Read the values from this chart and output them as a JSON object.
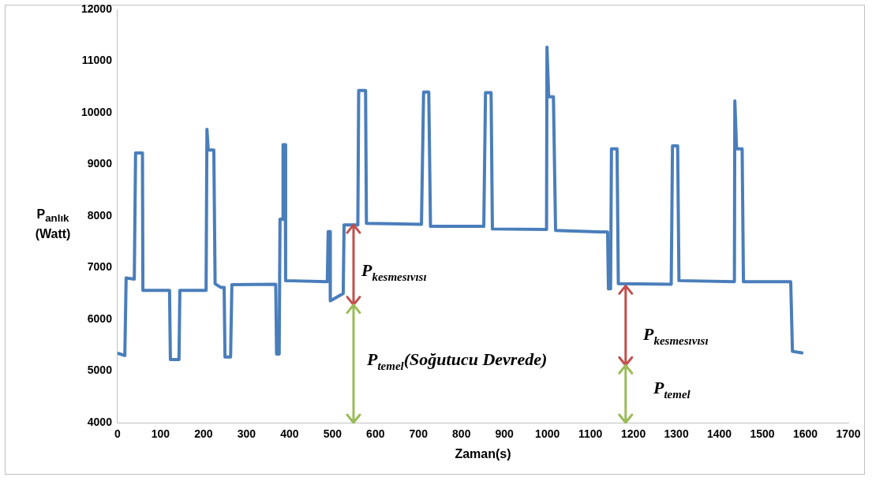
{
  "chart_data": {
    "type": "line",
    "xlabel": "Zaman(s)",
    "ylabel": "P$_{anlık}$ (Watt)",
    "x": [
      2,
      17,
      20,
      39,
      42,
      58,
      59,
      121,
      123,
      143,
      145,
      206,
      208,
      211,
      224,
      227,
      240,
      248,
      250,
      263,
      266,
      368,
      370,
      376,
      378,
      384,
      385,
      390,
      391,
      488,
      490,
      494,
      495,
      525,
      527,
      559,
      561,
      577,
      579,
      707,
      712,
      724,
      728,
      852,
      856,
      869,
      872,
      998,
      999,
      1003,
      1014,
      1019,
      1140,
      1142,
      1147,
      1149,
      1162,
      1165,
      1288,
      1291,
      1303,
      1306,
      1435,
      1436,
      1440,
      1453,
      1456,
      1566,
      1570,
      1592
    ],
    "series": [
      {
        "color": "#4a7ebb",
        "values": [
          5340,
          5300,
          6800,
          6780,
          9220,
          9220,
          6560,
          6560,
          5220,
          5220,
          6560,
          6560,
          9680,
          9280,
          9280,
          6690,
          6620,
          6620,
          5270,
          5270,
          6670,
          6680,
          5330,
          5330,
          7940,
          7940,
          9380,
          9380,
          6750,
          6730,
          7700,
          7700,
          6360,
          6500,
          7830,
          7830,
          10430,
          10430,
          7860,
          7840,
          10400,
          10400,
          7800,
          7800,
          10390,
          10390,
          7750,
          7740,
          11270,
          10310,
          10310,
          7720,
          7690,
          6590,
          6590,
          9300,
          9300,
          6690,
          6680,
          9360,
          9360,
          6750,
          6730,
          10230,
          9300,
          9300,
          6730,
          6730,
          5380,
          5350
        ]
      }
    ],
    "xlim": [
      0,
      1700
    ],
    "xticks": [
      0,
      100,
      200,
      300,
      400,
      500,
      600,
      700,
      800,
      900,
      1000,
      1100,
      1200,
      1300,
      1400,
      1500,
      1600,
      1700
    ],
    "ylim": [
      4000,
      12000
    ],
    "yticks": [
      4000,
      5000,
      6000,
      7000,
      8000,
      9000,
      10000,
      11000,
      12000
    ],
    "grid": false,
    "legend": false,
    "marker": "none",
    "line_style": "solid",
    "annotations": [
      "P$_{kesmesıvısı}$",
      "P$_{temel}$(Soğutucu Devrede)",
      "P$_{kesmesıvısı}$",
      "P$_{temel}$"
    ]
  }
}
